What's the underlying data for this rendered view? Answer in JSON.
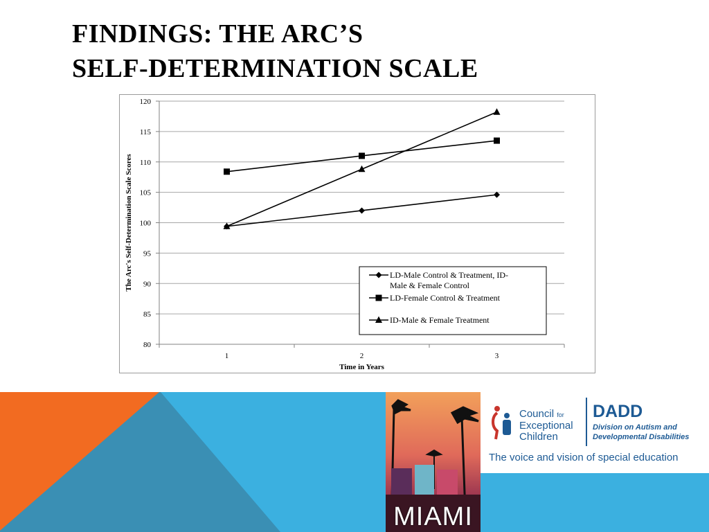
{
  "slide": {
    "title_line1": "FINDINGS:  THE ARC’S",
    "title_line2": "SELF-DETERMINATION SCALE"
  },
  "colors": {
    "orange": "#f26b21",
    "teal": "#3a8fb4",
    "sky": "#3bb0e0",
    "cec_blue": "#1d5a94",
    "cec_red": "#c8352c"
  },
  "chart_data": {
    "type": "line",
    "x": [
      1,
      2,
      3
    ],
    "xlabel": "Time in Years",
    "ylabel": "The Arc's Self-Determination Scale Scores",
    "ylim": [
      80,
      120
    ],
    "yticks": [
      80,
      85,
      90,
      95,
      100,
      105,
      110,
      115,
      120
    ],
    "grid": true,
    "legend_position": "bottom-right",
    "series": [
      {
        "name": "LD-Male Control & Treatment, ID-Male & Female Control",
        "legend_lines": [
          "LD-Male Control & Treatment, ID-",
          "Male & Female Control"
        ],
        "marker": "diamond",
        "values": [
          99.4,
          102.0,
          104.6
        ]
      },
      {
        "name": "LD-Female Control & Treatment",
        "legend_lines": [
          "LD-Female Control & Treatment"
        ],
        "marker": "square",
        "values": [
          108.4,
          111.0,
          113.5
        ]
      },
      {
        "name": "ID-Male & Female Treatment",
        "legend_lines": [
          "ID-Male & Female Treatment"
        ],
        "marker": "triangle",
        "values": [
          99.4,
          108.8,
          118.2
        ]
      }
    ]
  },
  "footer": {
    "miami_text": "MIAMI",
    "cec": {
      "name_line1": "Council",
      "name_for": "for",
      "name_line2": "Exceptional",
      "name_line3": "Children",
      "dadd_title": "DADD",
      "dadd_sub_line1": "Division on Autism and",
      "dadd_sub_line2": "Developmental Disabilities",
      "tagline": "The voice and vision of special education"
    }
  }
}
